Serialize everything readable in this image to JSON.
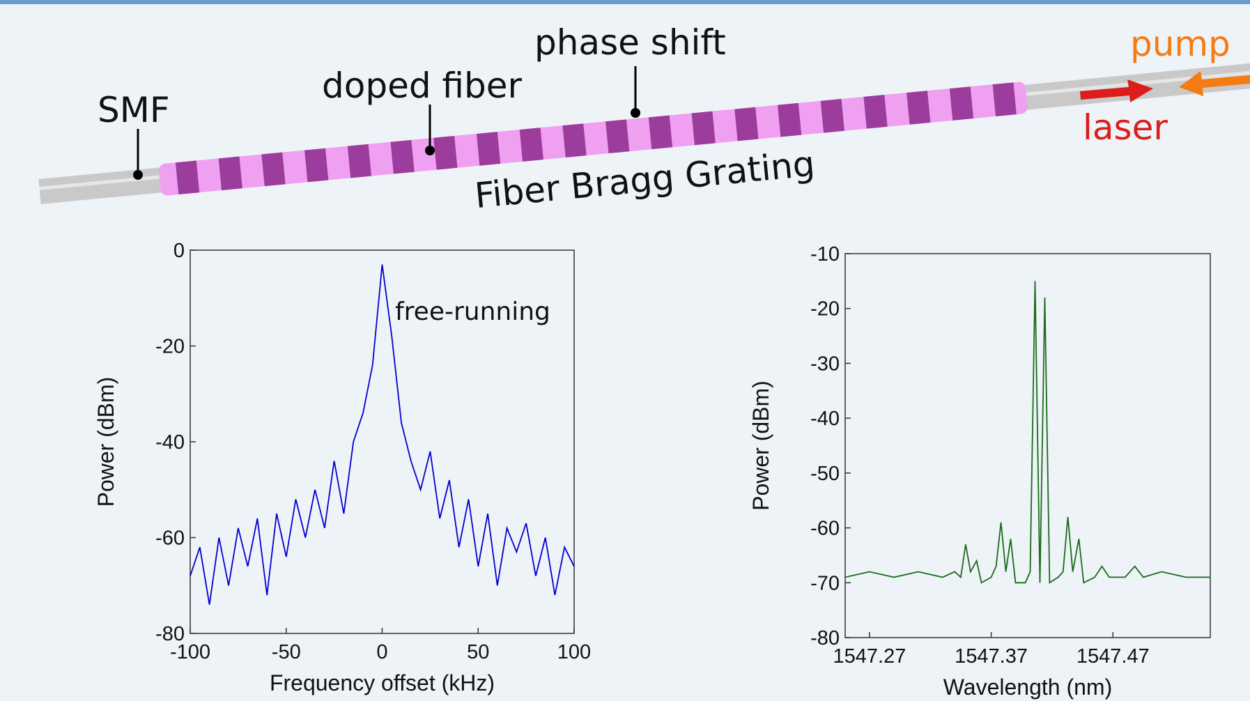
{
  "diagram": {
    "smf": "SMF",
    "doped_fiber": "doped fiber",
    "phase_shift": "phase shift",
    "grating": "Fiber Bragg Grating",
    "pump": "pump",
    "laser": "laser"
  },
  "chart_data": [
    {
      "type": "line",
      "xlabel": "Frequency offset (kHz)",
      "ylabel": "Power (dBm)",
      "annotation": "free-running",
      "x": [
        -100,
        -95,
        -90,
        -85,
        -80,
        -75,
        -70,
        -65,
        -60,
        -55,
        -50,
        -45,
        -40,
        -35,
        -30,
        -25,
        -20,
        -15,
        -10,
        -5,
        0,
        5,
        10,
        15,
        20,
        25,
        30,
        35,
        40,
        45,
        50,
        55,
        60,
        65,
        70,
        75,
        80,
        85,
        90,
        95,
        100
      ],
      "series": [
        {
          "color": "#0000cc",
          "values": [
            -68,
            -62,
            -74,
            -60,
            -70,
            -58,
            -66,
            -56,
            -72,
            -55,
            -64,
            -52,
            -60,
            -50,
            -58,
            -44,
            -55,
            -40,
            -34,
            -24,
            -3,
            -18,
            -36,
            -44,
            -50,
            -42,
            -56,
            -48,
            -62,
            -52,
            -66,
            -55,
            -70,
            -58,
            -63,
            -57,
            -68,
            -60,
            -72,
            -62,
            -66
          ]
        }
      ],
      "xlim": [
        -100,
        100
      ],
      "ylim": [
        -80,
        0
      ],
      "xticks": [
        -100,
        -50,
        0,
        50,
        100
      ],
      "yticks": [
        0,
        -20,
        -40,
        -60,
        -80
      ]
    },
    {
      "type": "line",
      "xlabel": "Wavelength (nm)",
      "ylabel": "Power (dBm)",
      "x": [
        1547.25,
        1547.27,
        1547.29,
        1547.31,
        1547.33,
        1547.34,
        1547.345,
        1547.349,
        1547.353,
        1547.358,
        1547.362,
        1547.37,
        1547.374,
        1547.378,
        1547.382,
        1547.386,
        1547.39,
        1547.398,
        1547.402,
        1547.406,
        1547.41,
        1547.414,
        1547.418,
        1547.425,
        1547.429,
        1547.433,
        1547.437,
        1547.442,
        1547.446,
        1547.455,
        1547.461,
        1547.467,
        1547.48,
        1547.488,
        1547.495,
        1547.51,
        1547.53,
        1547.55
      ],
      "series": [
        {
          "color": "#1a6b1a",
          "values": [
            -69,
            -68,
            -69,
            -68,
            -69,
            -68,
            -69,
            -63,
            -68,
            -66,
            -70,
            -69,
            -67,
            -59,
            -68,
            -62,
            -70,
            -70,
            -68,
            -15,
            -70,
            -18,
            -70,
            -69,
            -68,
            -58,
            -68,
            -62,
            -70,
            -69,
            -67,
            -69,
            -69,
            -67,
            -69,
            -68,
            -69,
            -69
          ]
        }
      ],
      "xlim": [
        1547.25,
        1547.55
      ],
      "ylim": [
        -80,
        -10
      ],
      "xticks": [
        1547.27,
        1547.37,
        1547.47
      ],
      "yticks": [
        -10,
        -20,
        -30,
        -40,
        -50,
        -60,
        -70,
        -80
      ]
    }
  ]
}
